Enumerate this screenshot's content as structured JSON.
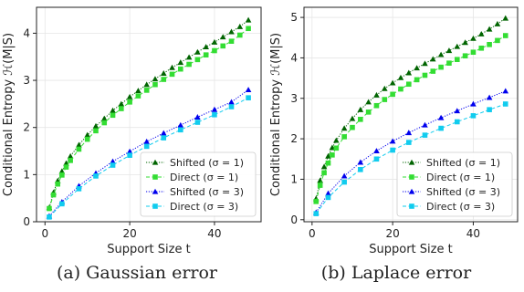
{
  "captions": [
    "(a) Gaussian error",
    "(b) Laplace error"
  ],
  "colors": {
    "shifted_sigma1": "#006400",
    "direct_sigma1": "#33dd33",
    "shifted_sigma3": "#0000ee",
    "direct_sigma3": "#11ccee"
  },
  "chart_data": [
    {
      "type": "line",
      "caption": "(a) Gaussian error",
      "xlabel": "Support Size t",
      "ylabel": "Conditional Entropy ℋ(M|S)",
      "xlim": [
        -2,
        51
      ],
      "ylim": [
        0,
        4.55
      ],
      "xticks": [
        0,
        20,
        40
      ],
      "yticks": [
        0,
        1,
        2,
        3,
        4
      ],
      "grid": true,
      "legend_position": "lower-right",
      "series": [
        {
          "name": "Shifted (σ = 1)",
          "marker": "triangle",
          "line": "dotted",
          "color": "#006400",
          "x": [
            1,
            2,
            3,
            4,
            5,
            6,
            8,
            10,
            12,
            14,
            16,
            18,
            20,
            22,
            24,
            26,
            28,
            30,
            32,
            34,
            36,
            38,
            40,
            42,
            44,
            46,
            48
          ],
          "y": [
            0.3,
            0.62,
            0.87,
            1.07,
            1.24,
            1.39,
            1.63,
            1.84,
            2.03,
            2.19,
            2.36,
            2.5,
            2.65,
            2.78,
            2.91,
            3.03,
            3.15,
            3.27,
            3.38,
            3.49,
            3.6,
            3.71,
            3.81,
            3.92,
            4.03,
            4.14,
            4.28
          ]
        },
        {
          "name": "Direct (σ = 1)",
          "marker": "square",
          "line": "dashed",
          "color": "#33dd33",
          "x": [
            1,
            2,
            3,
            4,
            5,
            6,
            8,
            10,
            12,
            14,
            16,
            18,
            20,
            22,
            24,
            26,
            28,
            30,
            32,
            34,
            36,
            38,
            40,
            42,
            44,
            46,
            48
          ],
          "y": [
            0.28,
            0.57,
            0.8,
            0.99,
            1.16,
            1.3,
            1.54,
            1.75,
            1.93,
            2.1,
            2.26,
            2.4,
            2.54,
            2.67,
            2.79,
            2.91,
            3.02,
            3.13,
            3.24,
            3.34,
            3.44,
            3.54,
            3.63,
            3.73,
            3.83,
            3.96,
            4.1
          ]
        },
        {
          "name": "Shifted (σ = 3)",
          "marker": "triangle",
          "line": "dotted",
          "color": "#0000ee",
          "x": [
            1,
            4,
            8,
            12,
            16,
            20,
            24,
            28,
            32,
            36,
            40,
            44,
            48
          ],
          "y": [
            0.12,
            0.42,
            0.76,
            1.03,
            1.28,
            1.49,
            1.7,
            1.88,
            2.05,
            2.22,
            2.38,
            2.54,
            2.8
          ]
        },
        {
          "name": "Direct (σ = 3)",
          "marker": "square",
          "line": "dashed",
          "color": "#11ccee",
          "x": [
            1,
            4,
            8,
            12,
            16,
            20,
            24,
            28,
            32,
            36,
            40,
            44,
            48
          ],
          "y": [
            0.1,
            0.38,
            0.7,
            0.97,
            1.2,
            1.41,
            1.6,
            1.78,
            1.95,
            2.11,
            2.27,
            2.44,
            2.63
          ]
        }
      ]
    },
    {
      "type": "line",
      "caption": "(b) Laplace error",
      "xlabel": "Support Size t",
      "ylabel": "Conditional Entropy ℋ(M|S)",
      "xlim": [
        -2,
        51
      ],
      "ylim": [
        -0.05,
        5.25
      ],
      "xticks": [
        0,
        20,
        40
      ],
      "yticks": [
        0,
        1,
        2,
        3,
        4,
        5
      ],
      "grid": true,
      "legend_position": "lower-right",
      "series": [
        {
          "name": "Shifted (σ = 1)",
          "marker": "triangle",
          "line": "dotted",
          "color": "#006400",
          "x": [
            1,
            2,
            3,
            4,
            5,
            6,
            8,
            10,
            12,
            14,
            16,
            18,
            20,
            22,
            24,
            26,
            28,
            30,
            32,
            34,
            36,
            38,
            40,
            42,
            44,
            46,
            48
          ],
          "y": [
            0.52,
            0.97,
            1.31,
            1.57,
            1.78,
            1.96,
            2.26,
            2.5,
            2.72,
            2.91,
            3.08,
            3.24,
            3.38,
            3.51,
            3.63,
            3.75,
            3.86,
            3.97,
            4.08,
            4.18,
            4.28,
            4.38,
            4.48,
            4.59,
            4.71,
            4.84,
            4.98
          ]
        },
        {
          "name": "Direct (σ = 1)",
          "marker": "square",
          "line": "dashed",
          "color": "#33dd33",
          "x": [
            1,
            2,
            3,
            4,
            5,
            6,
            8,
            10,
            12,
            14,
            16,
            18,
            20,
            22,
            24,
            26,
            28,
            30,
            32,
            34,
            36,
            38,
            40,
            42,
            44,
            46,
            48
          ],
          "y": [
            0.45,
            0.85,
            1.16,
            1.4,
            1.6,
            1.77,
            2.05,
            2.28,
            2.48,
            2.66,
            2.82,
            2.97,
            3.1,
            3.23,
            3.35,
            3.46,
            3.57,
            3.67,
            3.77,
            3.87,
            3.96,
            4.05,
            4.14,
            4.24,
            4.33,
            4.43,
            4.55
          ]
        },
        {
          "name": "Shifted (σ = 3)",
          "marker": "triangle",
          "line": "dotted",
          "color": "#0000ee",
          "x": [
            1,
            4,
            8,
            12,
            16,
            20,
            24,
            28,
            32,
            36,
            40,
            44,
            48
          ],
          "y": [
            0.18,
            0.65,
            1.08,
            1.42,
            1.7,
            1.94,
            2.15,
            2.34,
            2.52,
            2.69,
            2.86,
            3.02,
            3.18
          ]
        },
        {
          "name": "Direct (σ = 3)",
          "marker": "square",
          "line": "dashed",
          "color": "#11ccee",
          "x": [
            1,
            4,
            8,
            12,
            16,
            20,
            24,
            28,
            32,
            36,
            40,
            44,
            48
          ],
          "y": [
            0.15,
            0.55,
            0.93,
            1.24,
            1.5,
            1.72,
            1.91,
            2.09,
            2.26,
            2.42,
            2.57,
            2.72,
            2.86
          ]
        }
      ]
    }
  ]
}
